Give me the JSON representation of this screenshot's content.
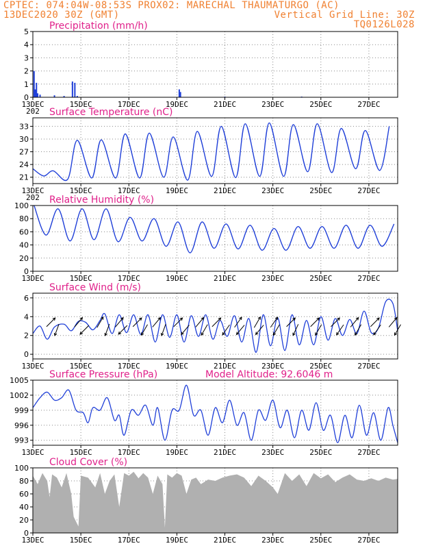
{
  "header": {
    "line1_left": "CPTEC:  074:04W-08:53S  PROX02: MARECHAL THAUMATURGO (AC)",
    "line2_left": "13DEC2020 30Z (GMT)",
    "line2_right": "Vertical Grid Line: 30Z",
    "line3_right": "TQ0126L028"
  },
  "colors": {
    "header": "#f08030",
    "title": "#e0208a",
    "line": "#1f3fd8",
    "cloud": "#b0b0b0",
    "arrow": "#000000"
  },
  "chart_data": [
    {
      "type": "bar",
      "title": "Precipitation (mm/h)",
      "ylim": [
        0,
        5
      ],
      "yticks": [
        "0",
        "1",
        "2",
        "3",
        "4",
        "5"
      ],
      "xticks": [
        "13DEC",
        "15DEC",
        "17DEC",
        "19DEC",
        "21DEC",
        "23DEC",
        "25DEC",
        "27DEC"
      ],
      "x_range_days": [
        0,
        15.2
      ],
      "bars": [
        [
          0.05,
          2.0
        ],
        [
          0.1,
          0.6
        ],
        [
          0.15,
          1.1
        ],
        [
          0.2,
          0.3
        ],
        [
          0.3,
          0.2
        ],
        [
          0.9,
          0.15
        ],
        [
          1.3,
          0.1
        ],
        [
          1.65,
          1.2
        ],
        [
          1.75,
          1.1
        ],
        [
          1.85,
          0.1
        ],
        [
          6.1,
          0.6
        ],
        [
          6.15,
          0.4
        ],
        [
          8.0,
          0.05
        ],
        [
          11.2,
          0.05
        ]
      ],
      "footnote": "202"
    },
    {
      "type": "line",
      "title": "Surface Temperature (nC)",
      "ylim": [
        19.5,
        35
      ],
      "yticks": [
        "21",
        "24",
        "27",
        "30",
        "33"
      ],
      "xticks": [
        "13DEC",
        "15DEC",
        "17DEC",
        "19DEC",
        "21DEC",
        "23DEC",
        "25DEC",
        "27DEC"
      ],
      "x_range_days": [
        0,
        15.2
      ],
      "daily_max": [
        22.5,
        29.7,
        29.8,
        31.2,
        31.4,
        30.5,
        31.8,
        33.0,
        33.6,
        33.8,
        33.4,
        33.6,
        32.5,
        32.0,
        33.0,
        33.2
      ],
      "daily_min": [
        21.3,
        20.5,
        20.8,
        20.8,
        20.8,
        21.0,
        20.3,
        21.2,
        20.9,
        21.2,
        21.2,
        22.3,
        22.1,
        23.0,
        22.6,
        23.2
      ],
      "footnote": "202"
    },
    {
      "type": "line",
      "title": "Relative Humidity (%)",
      "ylim": [
        0,
        100
      ],
      "yticks": [
        "0",
        "20",
        "40",
        "60",
        "80",
        "100"
      ],
      "xticks": [
        "13DEC",
        "15DEC",
        "17DEC",
        "19DEC",
        "21DEC",
        "23DEC",
        "25DEC",
        "27DEC"
      ],
      "x_range_days": [
        0,
        15.2
      ],
      "daily_max": [
        100,
        95,
        95,
        95,
        82,
        80,
        75,
        75,
        72,
        70,
        65,
        68,
        68,
        70,
        70,
        72
      ],
      "daily_min": [
        55,
        46,
        48,
        45,
        46,
        38,
        28,
        35,
        34,
        32,
        32,
        35,
        35,
        35,
        38,
        40
      ]
    },
    {
      "type": "line",
      "title": "Surface Wind (m/s)",
      "ylim": [
        -0.5,
        6.5
      ],
      "yticks": [
        "0",
        "2",
        "4",
        "6"
      ],
      "xticks": [
        "13DEC",
        "15DEC",
        "17DEC",
        "19DEC",
        "21DEC",
        "23DEC",
        "25DEC",
        "27DEC"
      ],
      "x_range_days": [
        0,
        15.2
      ],
      "speed_points": [
        [
          0,
          2.2
        ],
        [
          0.3,
          3.0
        ],
        [
          0.6,
          1.6
        ],
        [
          0.9,
          2.9
        ],
        [
          1.3,
          3.2
        ],
        [
          1.6,
          2.5
        ],
        [
          1.9,
          3.5
        ],
        [
          2.2,
          3.4
        ],
        [
          2.5,
          2.6
        ],
        [
          2.8,
          3.6
        ],
        [
          3.0,
          4.3
        ],
        [
          3.3,
          2.2
        ],
        [
          3.6,
          4.2
        ],
        [
          3.9,
          2.3
        ],
        [
          4.2,
          4.2
        ],
        [
          4.5,
          2.1
        ],
        [
          4.8,
          4.2
        ],
        [
          5.1,
          1.3
        ],
        [
          5.4,
          4.2
        ],
        [
          5.7,
          1.8
        ],
        [
          6.0,
          4.2
        ],
        [
          6.3,
          1.3
        ],
        [
          6.6,
          4.1
        ],
        [
          6.9,
          1.9
        ],
        [
          7.2,
          4.2
        ],
        [
          7.5,
          1.6
        ],
        [
          7.8,
          3.6
        ],
        [
          8.1,
          1.9
        ],
        [
          8.4,
          4.1
        ],
        [
          8.7,
          1.3
        ],
        [
          9.0,
          3.8
        ],
        [
          9.3,
          0.2
        ],
        [
          9.6,
          4.2
        ],
        [
          9.9,
          0.9
        ],
        [
          10.2,
          3.9
        ],
        [
          10.5,
          0.4
        ],
        [
          10.8,
          4.2
        ],
        [
          11.1,
          1.0
        ],
        [
          11.4,
          3.6
        ],
        [
          11.7,
          1.0
        ],
        [
          12.0,
          4.0
        ],
        [
          12.3,
          1.5
        ],
        [
          12.6,
          3.8
        ],
        [
          12.9,
          2.0
        ],
        [
          13.2,
          3.7
        ],
        [
          13.5,
          2.2
        ],
        [
          13.8,
          4.6
        ],
        [
          14.1,
          2.3
        ],
        [
          14.4,
          2.8
        ],
        [
          14.7,
          5.6
        ],
        [
          15.0,
          5.4
        ],
        [
          15.2,
          2.5
        ]
      ],
      "arrows": [
        [
          0.75,
          45
        ],
        [
          1.0,
          200
        ],
        [
          1.9,
          40
        ],
        [
          2.15,
          225
        ],
        [
          2.8,
          30
        ],
        [
          3.1,
          200
        ],
        [
          3.6,
          40
        ],
        [
          3.75,
          225
        ],
        [
          4.35,
          45
        ],
        [
          4.65,
          210
        ],
        [
          5.15,
          40
        ],
        [
          5.45,
          200
        ],
        [
          6.05,
          45
        ],
        [
          6.35,
          220
        ],
        [
          6.95,
          40
        ],
        [
          7.15,
          210
        ],
        [
          7.65,
          45
        ],
        [
          8.05,
          215
        ],
        [
          8.55,
          35
        ],
        [
          8.65,
          220
        ],
        [
          9.35,
          30
        ],
        [
          9.45,
          220
        ],
        [
          10.05,
          35
        ],
        [
          10.15,
          210
        ],
        [
          10.75,
          45
        ],
        [
          10.95,
          205
        ],
        [
          11.75,
          45
        ],
        [
          11.9,
          210
        ],
        [
          12.6,
          45
        ],
        [
          12.8,
          215
        ],
        [
          13.4,
          40
        ],
        [
          13.55,
          210
        ],
        [
          14.25,
          45
        ],
        [
          14.35,
          215
        ],
        [
          15.0,
          40
        ],
        [
          15.2,
          210
        ]
      ]
    },
    {
      "type": "line",
      "title": "Surface Pressure (hPa)",
      "annotation": "Model Altitude: 92.6046 m",
      "ylim": [
        992,
        1005
      ],
      "yticks": [
        "993",
        "996",
        "999",
        "1002",
        "1005"
      ],
      "xticks": [
        "13DEC",
        "15DEC",
        "17DEC",
        "19DEC",
        "21DEC",
        "23DEC",
        "25DEC",
        "27DEC"
      ],
      "x_range_days": [
        0,
        15.2
      ],
      "pressure_points": [
        [
          0,
          999.5
        ],
        [
          0.3,
          1001.5
        ],
        [
          0.6,
          1002.6
        ],
        [
          0.9,
          1001.0
        ],
        [
          1.2,
          1001.5
        ],
        [
          1.5,
          1003.0
        ],
        [
          1.8,
          999.0
        ],
        [
          2.1,
          998.5
        ],
        [
          2.3,
          996.5
        ],
        [
          2.5,
          999.5
        ],
        [
          2.8,
          999.0
        ],
        [
          3.1,
          1001.5
        ],
        [
          3.4,
          997.0
        ],
        [
          3.6,
          998.0
        ],
        [
          3.8,
          994.0
        ],
        [
          4.1,
          999.0
        ],
        [
          4.4,
          998.0
        ],
        [
          4.7,
          1000.0
        ],
        [
          5.0,
          996.0
        ],
        [
          5.2,
          999.5
        ],
        [
          5.5,
          993.0
        ],
        [
          5.8,
          999.0
        ],
        [
          6.1,
          999.0
        ],
        [
          6.4,
          1004.0
        ],
        [
          6.7,
          998.0
        ],
        [
          7.0,
          999.0
        ],
        [
          7.3,
          994.0
        ],
        [
          7.6,
          999.5
        ],
        [
          7.9,
          996.5
        ],
        [
          8.2,
          1001.0
        ],
        [
          8.5,
          996.0
        ],
        [
          8.8,
          998.5
        ],
        [
          9.1,
          993.0
        ],
        [
          9.4,
          999.0
        ],
        [
          9.7,
          997.0
        ],
        [
          10.0,
          1001.0
        ],
        [
          10.3,
          995.5
        ],
        [
          10.6,
          999.0
        ],
        [
          10.9,
          993.5
        ],
        [
          11.2,
          999.0
        ],
        [
          11.5,
          995.0
        ],
        [
          11.8,
          1000.5
        ],
        [
          12.1,
          995.0
        ],
        [
          12.4,
          998.0
        ],
        [
          12.7,
          992.5
        ],
        [
          13.0,
          998.0
        ],
        [
          13.3,
          993.5
        ],
        [
          13.6,
          1000.0
        ],
        [
          13.9,
          994.0
        ],
        [
          14.2,
          998.5
        ],
        [
          14.5,
          993.0
        ],
        [
          14.8,
          999.5
        ],
        [
          15.0,
          996.0
        ],
        [
          15.2,
          992.5
        ]
      ]
    },
    {
      "type": "area",
      "title": "Cloud Cover (%)",
      "ylim": [
        0,
        100
      ],
      "yticks": [
        "0",
        "20",
        "40",
        "60",
        "80",
        "100"
      ],
      "xticks": [
        "13DEC",
        "15DEC",
        "17DEC",
        "19DEC",
        "21DEC",
        "23DEC",
        "25DEC",
        "27DEC"
      ],
      "x_range_days": [
        0,
        15.2
      ],
      "cloud_points": [
        [
          0,
          88
        ],
        [
          0.2,
          75
        ],
        [
          0.4,
          92
        ],
        [
          0.6,
          80
        ],
        [
          0.7,
          55
        ],
        [
          0.8,
          90
        ],
        [
          1.0,
          85
        ],
        [
          1.2,
          70
        ],
        [
          1.4,
          92
        ],
        [
          1.6,
          60
        ],
        [
          1.7,
          25
        ],
        [
          1.9,
          10
        ],
        [
          2.0,
          88
        ],
        [
          2.3,
          85
        ],
        [
          2.6,
          70
        ],
        [
          2.8,
          92
        ],
        [
          3.0,
          60
        ],
        [
          3.2,
          80
        ],
        [
          3.4,
          90
        ],
        [
          3.6,
          40
        ],
        [
          3.8,
          92
        ],
        [
          4.0,
          88
        ],
        [
          4.2,
          94
        ],
        [
          4.4,
          84
        ],
        [
          4.6,
          92
        ],
        [
          4.8,
          85
        ],
        [
          5.0,
          60
        ],
        [
          5.2,
          88
        ],
        [
          5.4,
          75
        ],
        [
          5.5,
          8
        ],
        [
          5.6,
          90
        ],
        [
          5.8,
          85
        ],
        [
          6.0,
          92
        ],
        [
          6.2,
          88
        ],
        [
          6.4,
          60
        ],
        [
          6.6,
          82
        ],
        [
          6.8,
          85
        ],
        [
          7.0,
          75
        ],
        [
          7.3,
          82
        ],
        [
          7.6,
          80
        ],
        [
          7.9,
          85
        ],
        [
          8.2,
          88
        ],
        [
          8.5,
          90
        ],
        [
          8.8,
          85
        ],
        [
          9.1,
          72
        ],
        [
          9.4,
          88
        ],
        [
          9.7,
          80
        ],
        [
          10.0,
          70
        ],
        [
          10.2,
          60
        ],
        [
          10.5,
          92
        ],
        [
          10.8,
          80
        ],
        [
          11.1,
          90
        ],
        [
          11.4,
          72
        ],
        [
          11.7,
          92
        ],
        [
          12.0,
          84
        ],
        [
          12.3,
          90
        ],
        [
          12.6,
          78
        ],
        [
          12.9,
          85
        ],
        [
          13.2,
          90
        ],
        [
          13.5,
          82
        ],
        [
          13.8,
          80
        ],
        [
          14.1,
          84
        ],
        [
          14.4,
          80
        ],
        [
          14.7,
          85
        ],
        [
          15.0,
          82
        ],
        [
          15.2,
          83
        ]
      ]
    }
  ]
}
